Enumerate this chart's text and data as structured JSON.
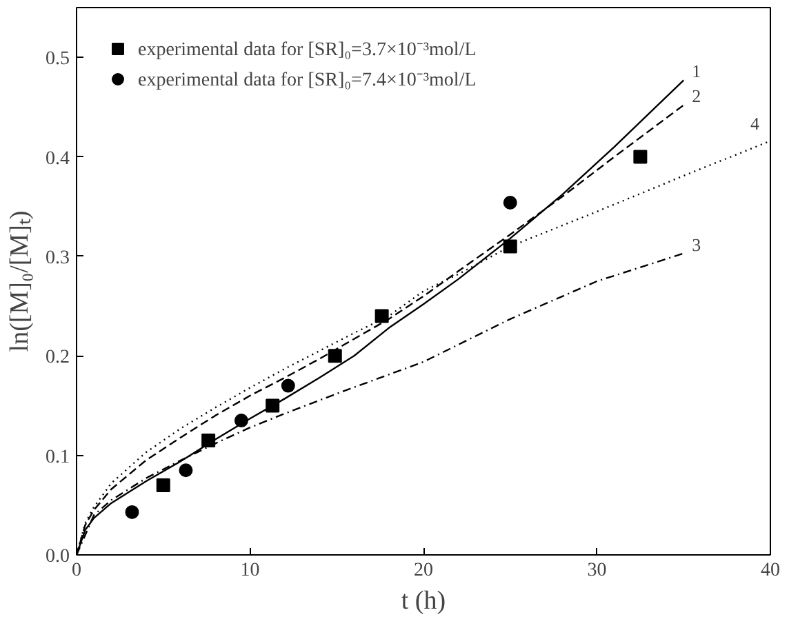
{
  "chart_data": {
    "type": "line",
    "xlabel": "t (h)",
    "ylabel": "ln([M]₀/[M]ₜ)",
    "xlim": [
      0,
      40
    ],
    "ylim": [
      0,
      0.55
    ],
    "xticks": [
      0,
      10,
      20,
      30,
      40
    ],
    "yticks": [
      {
        "value": 0,
        "label": "0.0"
      },
      {
        "value": 0.1,
        "label": "0.1"
      },
      {
        "value": 0.2,
        "label": "0.2"
      },
      {
        "value": 0.3,
        "label": "0.3"
      },
      {
        "value": 0.4,
        "label": "0.4"
      },
      {
        "value": 0.5,
        "label": "0.5"
      }
    ],
    "grid": false,
    "legend": "top left",
    "series": [
      {
        "name": "experimental data for [SR]₀=3.7×10⁻³mol/L",
        "type": "scatter",
        "marker": "square",
        "color": "#000000",
        "x": [
          5,
          7.6,
          11.3,
          14.9,
          17.6,
          25,
          32.5
        ],
        "values": [
          0.07,
          0.115,
          0.15,
          0.2,
          0.24,
          0.31,
          0.4
        ]
      },
      {
        "name": "experimental data for [SR]₀=7.4×10⁻³mol/L",
        "type": "scatter",
        "marker": "circle",
        "color": "#000000",
        "x": [
          3.2,
          6.3,
          9.5,
          12.2,
          25
        ],
        "values": [
          0.043,
          0.085,
          0.135,
          0.17,
          0.354
        ]
      },
      {
        "name": "1",
        "line_style": "solid",
        "color": "#000000",
        "x": [
          0,
          0.5,
          1,
          2,
          4,
          6,
          8,
          10,
          12,
          14,
          16,
          18,
          20,
          22,
          25,
          28,
          31,
          35
        ],
        "values": [
          0,
          0.025,
          0.037,
          0.052,
          0.074,
          0.094,
          0.116,
          0.137,
          0.157,
          0.178,
          0.2,
          0.228,
          0.252,
          0.277,
          0.318,
          0.362,
          0.41,
          0.477
        ]
      },
      {
        "name": "2",
        "line_style": "dashed",
        "color": "#000000",
        "x": [
          0,
          0.5,
          1,
          2,
          4,
          6,
          8,
          10,
          12,
          14,
          16,
          18,
          20,
          22,
          25,
          28,
          31,
          35
        ],
        "values": [
          0,
          0.03,
          0.045,
          0.066,
          0.095,
          0.118,
          0.14,
          0.16,
          0.178,
          0.197,
          0.217,
          0.237,
          0.26,
          0.285,
          0.322,
          0.36,
          0.4,
          0.452
        ]
      },
      {
        "name": "3",
        "line_style": "dashdot",
        "color": "#000000",
        "x": [
          0,
          1,
          2,
          4,
          6,
          8,
          10,
          12,
          15,
          20,
          25,
          30,
          35
        ],
        "values": [
          0,
          0.04,
          0.055,
          0.077,
          0.095,
          0.112,
          0.128,
          0.142,
          0.162,
          0.194,
          0.237,
          0.275,
          0.303
        ]
      },
      {
        "name": "4",
        "line_style": "dotted",
        "color": "#000000",
        "x": [
          0,
          0.5,
          1,
          2,
          4,
          6,
          8,
          10,
          12,
          14,
          16,
          18,
          20,
          22,
          25,
          30,
          35,
          40
        ],
        "values": [
          0,
          0.032,
          0.048,
          0.072,
          0.103,
          0.127,
          0.148,
          0.168,
          0.187,
          0.205,
          0.223,
          0.24,
          0.265,
          0.282,
          0.31,
          0.345,
          0.381,
          0.416
        ]
      }
    ]
  }
}
